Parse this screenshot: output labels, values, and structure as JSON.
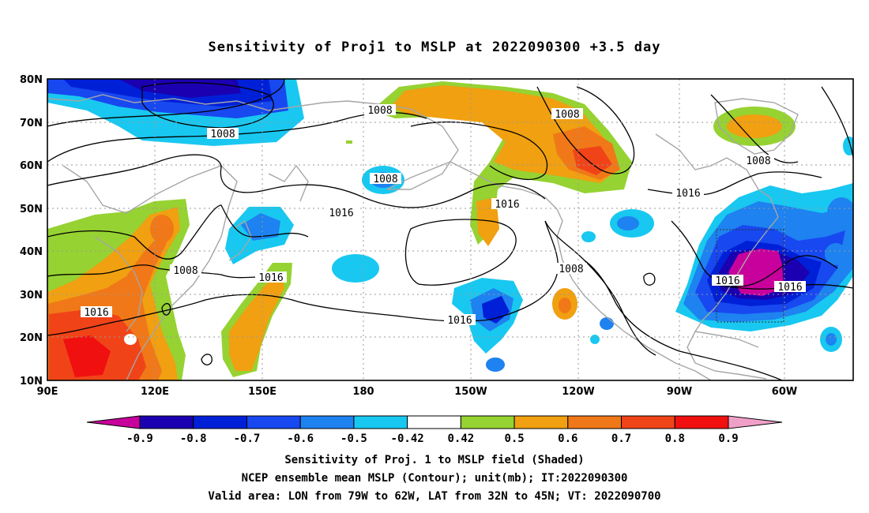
{
  "title": "Sensitivity of Proj1 to MSLP at 2022090300 +3.5 day",
  "axes": {
    "lat_ticks": [
      "80N",
      "70N",
      "60N",
      "50N",
      "40N",
      "30N",
      "20N",
      "10N"
    ],
    "lon_ticks": [
      "90E",
      "120E",
      "150E",
      "180",
      "150W",
      "120W",
      "90W",
      "60W"
    ]
  },
  "contour_labels": [
    "1008",
    "1008",
    "1008",
    "1008",
    "1008",
    "1008",
    "1016",
    "1016",
    "1016",
    "1016",
    "1016",
    "1016",
    "1016",
    "1016"
  ],
  "colorbar": {
    "labels": [
      "-0.9",
      "-0.8",
      "-0.7",
      "-0.6",
      "-0.5",
      "-0.42",
      "0.42",
      "0.5",
      "0.6",
      "0.7",
      "0.8",
      "0.9"
    ],
    "colors": [
      "#c8009c",
      "#1a00b0",
      "#0020d8",
      "#1848f0",
      "#1e82f0",
      "#18c8f0",
      "#ffffff",
      "#96d232",
      "#f0a010",
      "#f07818",
      "#f04418",
      "#f01010",
      "#f0a0c8"
    ]
  },
  "captions": [
    "Sensitivity of Proj. 1 to MSLP field (Shaded)",
    "NCEP ensemble mean MSLP (Contour); unit(mb); IT:2022090300",
    "Valid area: LON from 79W to 62W, LAT from 32N to 45N; VT: 2022090700"
  ]
}
